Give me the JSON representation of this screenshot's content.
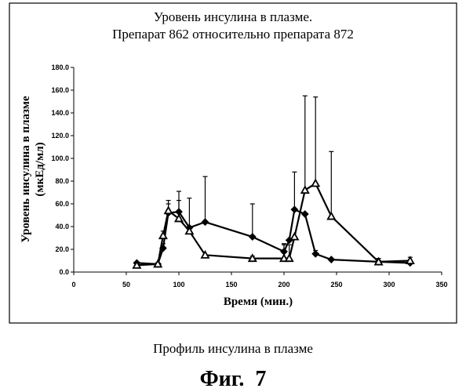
{
  "figure": {
    "caption": "Профиль инсулина в плазме",
    "label": "Фиг.  7"
  },
  "chart_data": {
    "type": "line",
    "title_lines": [
      "Уровень инсулина в плазме.",
      "Препарат 862 относительно препарата 872"
    ],
    "xlabel": "Время (мин.)",
    "ylabel_lines": [
      "Уровень инсулина  в плазме",
      "(мкЕд/мл)"
    ],
    "xlim": [
      0,
      350
    ],
    "ylim": [
      0,
      180
    ],
    "xticks": [
      0,
      50,
      100,
      150,
      200,
      250,
      300,
      350
    ],
    "yticks": [
      0,
      20,
      40,
      60,
      80,
      100,
      120,
      140,
      160,
      180
    ],
    "ytick_format": "1dp",
    "legend": "none",
    "grid": false,
    "series": [
      {
        "marker": "diamond",
        "points": [
          {
            "x": 60,
            "y": 8,
            "err": 0
          },
          {
            "x": 80,
            "y": 7,
            "err": 0
          },
          {
            "x": 85,
            "y": 21,
            "err": 4
          },
          {
            "x": 90,
            "y": 52,
            "err": 8
          },
          {
            "x": 100,
            "y": 53,
            "err": 18
          },
          {
            "x": 110,
            "y": 39,
            "err": 26
          },
          {
            "x": 125,
            "y": 44,
            "err": 40
          },
          {
            "x": 170,
            "y": 31,
            "err": 29
          },
          {
            "x": 200,
            "y": 18,
            "err": 7
          },
          {
            "x": 205,
            "y": 28,
            "err": 0
          },
          {
            "x": 210,
            "y": 55,
            "err": 33
          },
          {
            "x": 220,
            "y": 51,
            "err": 0
          },
          {
            "x": 230,
            "y": 16,
            "err": 3
          },
          {
            "x": 245,
            "y": 11,
            "err": 0
          },
          {
            "x": 290,
            "y": 9,
            "err": 0
          },
          {
            "x": 320,
            "y": 8,
            "err": 0
          }
        ]
      },
      {
        "marker": "triangle",
        "points": [
          {
            "x": 60,
            "y": 6,
            "err": 2
          },
          {
            "x": 80,
            "y": 7,
            "err": 0
          },
          {
            "x": 85,
            "y": 32,
            "err": 4
          },
          {
            "x": 90,
            "y": 54,
            "err": 9
          },
          {
            "x": 100,
            "y": 47,
            "err": 16
          },
          {
            "x": 110,
            "y": 36,
            "err": 3
          },
          {
            "x": 125,
            "y": 15,
            "err": 0
          },
          {
            "x": 170,
            "y": 12,
            "err": 2
          },
          {
            "x": 200,
            "y": 12,
            "err": 12
          },
          {
            "x": 205,
            "y": 12,
            "err": 12
          },
          {
            "x": 210,
            "y": 31,
            "err": 0
          },
          {
            "x": 220,
            "y": 72,
            "err": 83
          },
          {
            "x": 230,
            "y": 78,
            "err": 76
          },
          {
            "x": 245,
            "y": 49,
            "err": 57
          },
          {
            "x": 290,
            "y": 9,
            "err": 3
          },
          {
            "x": 320,
            "y": 10,
            "err": 3
          }
        ]
      }
    ]
  }
}
